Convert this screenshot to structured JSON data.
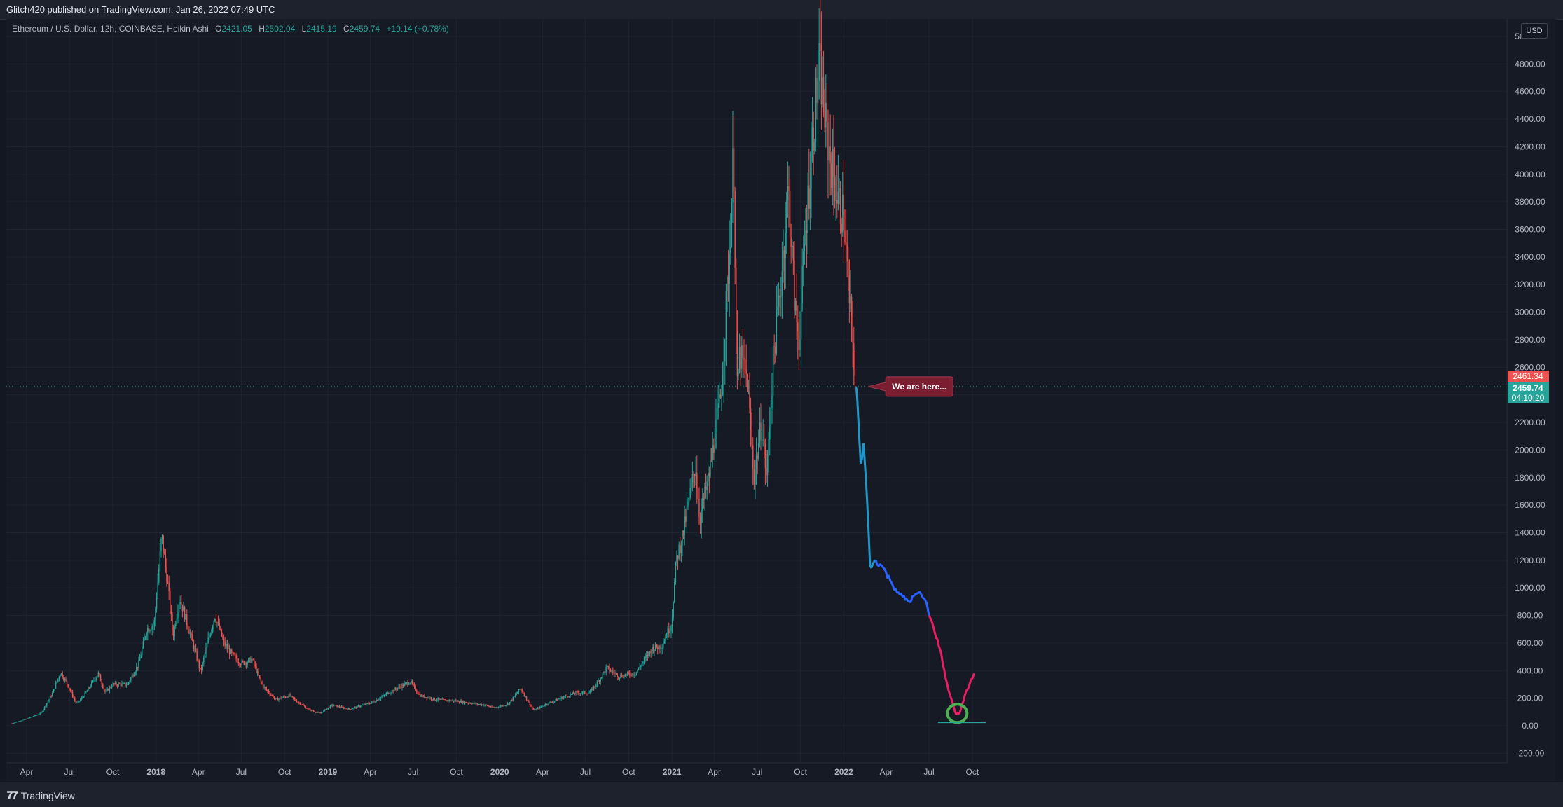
{
  "header": {
    "publish_text": "Glitch420 published on TradingView.com, Jan 26, 2022 07:49 UTC"
  },
  "legend": {
    "symbol": "Ethereum / U.S. Dollar, 12h, COINBASE, Heikin Ashi",
    "open_label": "O",
    "open": "2421.05",
    "high_label": "H",
    "high": "2502.04",
    "low_label": "L",
    "low": "2415.19",
    "close_label": "C",
    "close": "2459.74",
    "change": "+19.14 (+0.78%)"
  },
  "currency": "USD",
  "price_tags": {
    "prev": "2461.34",
    "last": "2459.74",
    "countdown": "04:10:20"
  },
  "annotation": {
    "text": "We are here..."
  },
  "footer": {
    "brand": "TradingView"
  },
  "colors": {
    "background": "#161a25",
    "up": "#26a69a",
    "down": "#ef5350",
    "projection_cyan": "#2196c8",
    "projection_blue": "#2962ff",
    "projection_pink": "#e91e63",
    "annotation_bg": "#7b1e32",
    "circle": "#4caf50"
  },
  "chart_data": {
    "type": "line",
    "chart_style": "Heikin Ashi candlesticks with hand-drawn projection",
    "ylim": [
      -200,
      5000
    ],
    "y_ticks": [
      -200,
      0,
      200,
      400,
      600,
      800,
      1000,
      1200,
      1400,
      1600,
      1800,
      2000,
      2200,
      2400,
      2600,
      2800,
      3000,
      3200,
      3400,
      3600,
      3800,
      4000,
      4200,
      4400,
      4600,
      4800,
      5000
    ],
    "x_ticks": [
      "Apr",
      "Jul",
      "Oct",
      "2018",
      "Apr",
      "Jul",
      "Oct",
      "2019",
      "Apr",
      "Jul",
      "Oct",
      "2020",
      "Apr",
      "Jul",
      "Oct",
      "2021",
      "Apr",
      "Jul",
      "Oct",
      "2022",
      "Apr",
      "Jul",
      "Oct"
    ],
    "current_price": 2459.74,
    "grid": true,
    "series": [
      {
        "values": [
          [
            "2017-03-01",
            18
          ],
          [
            "2017-04-01",
            50
          ],
          [
            "2017-05-01",
            90
          ],
          [
            "2017-05-25",
            230
          ],
          [
            "2017-06-12",
            390
          ],
          [
            "2017-06-25",
            310
          ],
          [
            "2017-07-16",
            160
          ],
          [
            "2017-08-01",
            220
          ],
          [
            "2017-08-31",
            380
          ],
          [
            "2017-09-15",
            240
          ],
          [
            "2017-10-01",
            300
          ],
          [
            "2017-11-01",
            300
          ],
          [
            "2017-11-25",
            450
          ],
          [
            "2017-12-12",
            700
          ],
          [
            "2017-12-28",
            740
          ],
          [
            "2018-01-13",
            1380
          ],
          [
            "2018-01-25",
            1050
          ],
          [
            "2018-02-06",
            650
          ],
          [
            "2018-02-20",
            930
          ],
          [
            "2018-03-10",
            720
          ],
          [
            "2018-04-06",
            390
          ],
          [
            "2018-04-20",
            600
          ],
          [
            "2018-05-06",
            800
          ],
          [
            "2018-05-25",
            600
          ],
          [
            "2018-06-10",
            520
          ],
          [
            "2018-07-01",
            450
          ],
          [
            "2018-07-24",
            480
          ],
          [
            "2018-08-15",
            290
          ],
          [
            "2018-09-12",
            190
          ],
          [
            "2018-10-10",
            220
          ],
          [
            "2018-11-20",
            120
          ],
          [
            "2018-12-15",
            90
          ],
          [
            "2019-01-10",
            150
          ],
          [
            "2019-02-15",
            120
          ],
          [
            "2019-04-05",
            170
          ],
          [
            "2019-05-20",
            260
          ],
          [
            "2019-06-25",
            320
          ],
          [
            "2019-07-15",
            220
          ],
          [
            "2019-08-20",
            190
          ],
          [
            "2019-10-01",
            180
          ],
          [
            "2019-12-01",
            150
          ],
          [
            "2019-12-20",
            130
          ],
          [
            "2020-01-20",
            160
          ],
          [
            "2020-02-14",
            270
          ],
          [
            "2020-03-13",
            110
          ],
          [
            "2020-04-10",
            160
          ],
          [
            "2020-05-10",
            200
          ],
          [
            "2020-06-10",
            240
          ],
          [
            "2020-07-10",
            240
          ],
          [
            "2020-07-30",
            330
          ],
          [
            "2020-08-15",
            420
          ],
          [
            "2020-09-10",
            360
          ],
          [
            "2020-10-15",
            380
          ],
          [
            "2020-11-20",
            560
          ],
          [
            "2020-12-10",
            580
          ],
          [
            "2020-12-31",
            740
          ],
          [
            "2021-01-10",
            1200
          ],
          [
            "2021-01-25",
            1400
          ],
          [
            "2021-02-20",
            1900
          ],
          [
            "2021-03-01",
            1500
          ],
          [
            "2021-03-20",
            1800
          ],
          [
            "2021-04-15",
            2400
          ],
          [
            "2021-05-04",
            3500
          ],
          [
            "2021-05-12",
            4200
          ],
          [
            "2021-05-19",
            2400
          ],
          [
            "2021-05-25",
            2700
          ],
          [
            "2021-06-10",
            2500
          ],
          [
            "2021-06-24",
            1800
          ],
          [
            "2021-07-10",
            2200
          ],
          [
            "2021-07-21",
            1800
          ],
          [
            "2021-08-05",
            2700
          ],
          [
            "2021-08-20",
            3200
          ],
          [
            "2021-09-05",
            3900
          ],
          [
            "2021-09-20",
            3000
          ],
          [
            "2021-09-28",
            2800
          ],
          [
            "2021-10-10",
            3500
          ],
          [
            "2021-10-25",
            4200
          ],
          [
            "2021-11-10",
            4800
          ],
          [
            "2021-11-25",
            4300
          ],
          [
            "2021-12-04",
            4100
          ],
          [
            "2021-12-20",
            3800
          ],
          [
            "2022-01-01",
            3700
          ],
          [
            "2022-01-10",
            3200
          ],
          [
            "2022-01-20",
            2800
          ],
          [
            "2022-01-26",
            2460
          ]
        ]
      },
      {
        "values": [
          [
            "2022-01-26",
            2460
          ],
          [
            "2022-01-30",
            2350
          ],
          [
            "2022-02-06",
            1900
          ],
          [
            "2022-02-12",
            2050
          ],
          [
            "2022-02-20",
            1600
          ],
          [
            "2022-02-26",
            1150
          ],
          [
            "2022-03-10",
            1200
          ],
          [
            "2022-03-25",
            1150
          ],
          [
            "2022-04-10",
            1050
          ],
          [
            "2022-04-30",
            950
          ],
          [
            "2022-05-20",
            900
          ],
          [
            "2022-06-05",
            960
          ],
          [
            "2022-06-15",
            950
          ],
          [
            "2022-06-25",
            900
          ],
          [
            "2022-07-01",
            800
          ],
          [
            "2022-07-10",
            720
          ],
          [
            "2022-07-25",
            550
          ],
          [
            "2022-08-05",
            350
          ],
          [
            "2022-08-15",
            220
          ],
          [
            "2022-08-28",
            80
          ],
          [
            "2022-09-05",
            100
          ],
          [
            "2022-09-15",
            220
          ],
          [
            "2022-09-25",
            300
          ],
          [
            "2022-10-05",
            380
          ]
        ]
      }
    ],
    "annotations": [
      {
        "type": "callout",
        "text": "We are here...",
        "date": "2022-01-26",
        "price": 2460
      },
      {
        "type": "circle",
        "date": "2022-08-30",
        "price": 90
      },
      {
        "type": "horizontal_segment",
        "start": "2022-07-20",
        "end": "2022-10-30",
        "price": 25
      }
    ]
  }
}
